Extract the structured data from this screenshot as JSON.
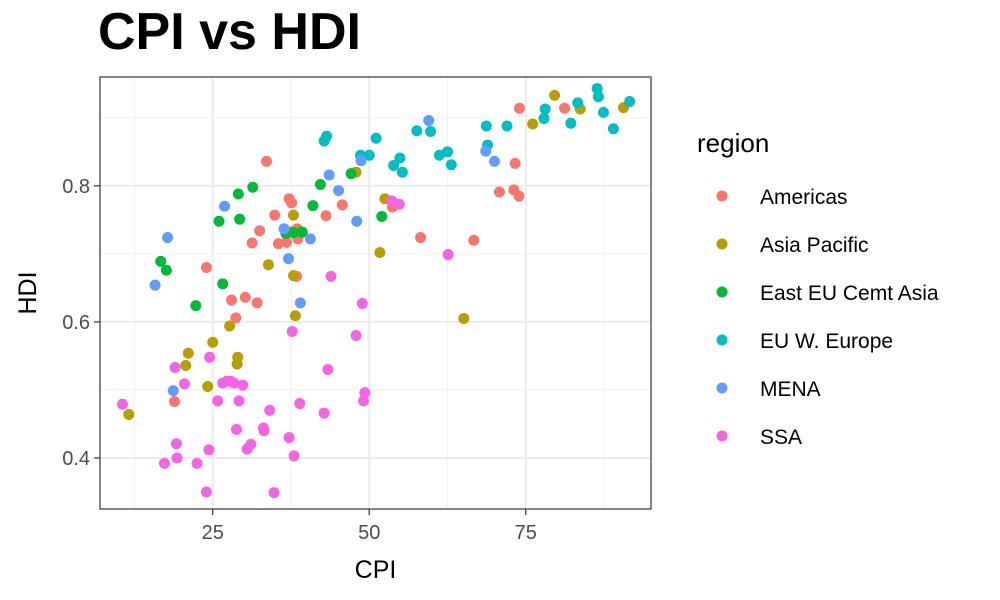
{
  "chart_data": {
    "type": "scatter",
    "title": "CPI vs HDI",
    "xlabel": "CPI",
    "ylabel": "HDI",
    "xlim": [
      7,
      95
    ],
    "ylim": [
      0.325,
      0.96
    ],
    "x_ticks": [
      25,
      50,
      75
    ],
    "y_ticks": [
      0.4,
      0.6,
      0.8
    ],
    "x_tick_labels": [
      "25",
      "50",
      "75"
    ],
    "y_tick_labels": [
      "0.4",
      "0.6",
      "0.8"
    ],
    "grid": true,
    "legend": {
      "title": "region",
      "position": "right"
    },
    "series": [
      {
        "name": "Americas",
        "color": "#F8766D",
        "points": [
          [
            24.0,
            0.68
          ],
          [
            18.9,
            0.483
          ],
          [
            28.0,
            0.632
          ],
          [
            28.7,
            0.606
          ],
          [
            30.2,
            0.636
          ],
          [
            32.1,
            0.628
          ],
          [
            31.3,
            0.716
          ],
          [
            32.5,
            0.734
          ],
          [
            33.6,
            0.836
          ],
          [
            34.9,
            0.757
          ],
          [
            35.5,
            0.715
          ],
          [
            36.8,
            0.717
          ],
          [
            37.2,
            0.781
          ],
          [
            37.6,
            0.775
          ],
          [
            37.8,
            0.733
          ],
          [
            38.1,
            0.73
          ],
          [
            38.5,
            0.737
          ],
          [
            38.6,
            0.722
          ],
          [
            38.4,
            0.667
          ],
          [
            43.1,
            0.756
          ],
          [
            45.7,
            0.772
          ],
          [
            53.7,
            0.769
          ],
          [
            58.2,
            0.724
          ],
          [
            66.7,
            0.72
          ],
          [
            70.8,
            0.791
          ],
          [
            73.1,
            0.794
          ],
          [
            73.3,
            0.833
          ],
          [
            73.9,
            0.785
          ],
          [
            74.0,
            0.914
          ],
          [
            81.2,
            0.914
          ]
        ]
      },
      {
        "name": "Asia Pacific",
        "color": "#B79F00",
        "points": [
          [
            11.6,
            0.464
          ],
          [
            20.7,
            0.536
          ],
          [
            21.1,
            0.554
          ],
          [
            24.2,
            0.505
          ],
          [
            25.0,
            0.57
          ],
          [
            27.7,
            0.594
          ],
          [
            28.9,
            0.538
          ],
          [
            29.0,
            0.548
          ],
          [
            33.9,
            0.684
          ],
          [
            37.9,
            0.757
          ],
          [
            37.9,
            0.668
          ],
          [
            38.2,
            0.609
          ],
          [
            38.9,
            0.733
          ],
          [
            47.9,
            0.82
          ],
          [
            51.7,
            0.702
          ],
          [
            52.5,
            0.781
          ],
          [
            65.1,
            0.605
          ],
          [
            76.1,
            0.891
          ],
          [
            79.6,
            0.933
          ],
          [
            83.7,
            0.913
          ],
          [
            90.6,
            0.915
          ]
        ]
      },
      {
        "name": "East EU Cemt Asia",
        "color": "#00BA38",
        "points": [
          [
            16.7,
            0.689
          ],
          [
            17.6,
            0.676
          ],
          [
            22.3,
            0.624
          ],
          [
            26.0,
            0.748
          ],
          [
            26.6,
            0.656
          ],
          [
            29.1,
            0.788
          ],
          [
            29.3,
            0.751
          ],
          [
            31.4,
            0.798
          ],
          [
            36.7,
            0.73
          ],
          [
            37.9,
            0.731
          ],
          [
            39.3,
            0.732
          ],
          [
            41.0,
            0.771
          ],
          [
            42.2,
            0.802
          ],
          [
            47.1,
            0.818
          ],
          [
            52.0,
            0.755
          ]
        ]
      },
      {
        "name": "EU W. Europe",
        "color": "#00BFC4",
        "points": [
          [
            42.8,
            0.866
          ],
          [
            43.2,
            0.873
          ],
          [
            48.6,
            0.845
          ],
          [
            50.0,
            0.845
          ],
          [
            51.1,
            0.87
          ],
          [
            53.9,
            0.83
          ],
          [
            54.9,
            0.841
          ],
          [
            55.3,
            0.82
          ],
          [
            57.6,
            0.881
          ],
          [
            59.8,
            0.88
          ],
          [
            61.2,
            0.845
          ],
          [
            62.5,
            0.85
          ],
          [
            63.1,
            0.831
          ],
          [
            68.7,
            0.888
          ],
          [
            68.9,
            0.86
          ],
          [
            72.0,
            0.888
          ],
          [
            77.9,
            0.899
          ],
          [
            78.1,
            0.913
          ],
          [
            82.2,
            0.892
          ],
          [
            83.3,
            0.922
          ],
          [
            86.4,
            0.943
          ],
          [
            86.6,
            0.931
          ],
          [
            87.4,
            0.908
          ],
          [
            89.0,
            0.884
          ],
          [
            91.6,
            0.924
          ]
        ]
      },
      {
        "name": "MENA",
        "color": "#619CFF",
        "points": [
          [
            17.8,
            0.724
          ],
          [
            15.8,
            0.654
          ],
          [
            18.7,
            0.499
          ],
          [
            26.9,
            0.77
          ],
          [
            36.4,
            0.737
          ],
          [
            37.1,
            0.693
          ],
          [
            39.0,
            0.628
          ],
          [
            40.6,
            0.722
          ],
          [
            43.6,
            0.816
          ],
          [
            45.1,
            0.793
          ],
          [
            48.0,
            0.748
          ],
          [
            48.7,
            0.837
          ],
          [
            59.5,
            0.896
          ],
          [
            68.6,
            0.851
          ],
          [
            70.0,
            0.836
          ]
        ]
      },
      {
        "name": "SSA",
        "color": "#F564E3",
        "points": [
          [
            10.6,
            0.479
          ],
          [
            17.3,
            0.392
          ],
          [
            19.0,
            0.533
          ],
          [
            19.2,
            0.421
          ],
          [
            19.3,
            0.4
          ],
          [
            20.5,
            0.509
          ],
          [
            22.5,
            0.392
          ],
          [
            24.0,
            0.35
          ],
          [
            24.4,
            0.412
          ],
          [
            24.5,
            0.548
          ],
          [
            25.8,
            0.484
          ],
          [
            26.6,
            0.51
          ],
          [
            27.3,
            0.513
          ],
          [
            27.8,
            0.513
          ],
          [
            28.4,
            0.51
          ],
          [
            28.8,
            0.442
          ],
          [
            29.2,
            0.484
          ],
          [
            29.8,
            0.507
          ],
          [
            30.5,
            0.413
          ],
          [
            31.1,
            0.42
          ],
          [
            33.1,
            0.444
          ],
          [
            33.2,
            0.44
          ],
          [
            34.1,
            0.47
          ],
          [
            34.8,
            0.349
          ],
          [
            37.2,
            0.43
          ],
          [
            37.7,
            0.586
          ],
          [
            38.0,
            0.403
          ],
          [
            38.9,
            0.48
          ],
          [
            42.8,
            0.466
          ],
          [
            43.4,
            0.53
          ],
          [
            43.9,
            0.667
          ],
          [
            47.9,
            0.58
          ],
          [
            48.9,
            0.627
          ],
          [
            49.1,
            0.484
          ],
          [
            49.3,
            0.496
          ],
          [
            53.6,
            0.778
          ],
          [
            54.8,
            0.773
          ],
          [
            62.6,
            0.699
          ]
        ]
      }
    ]
  }
}
